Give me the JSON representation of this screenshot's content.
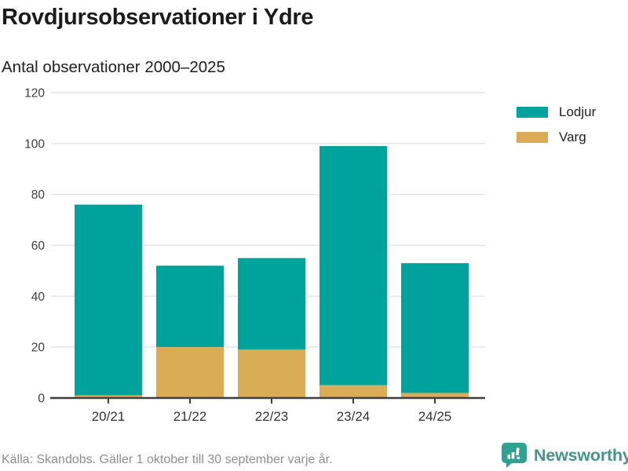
{
  "header": {
    "title": "Rovdjursobservationer i Ydre",
    "subtitle": "Antal observationer 2000–2025"
  },
  "chart_data": {
    "type": "bar",
    "stacked": true,
    "title": "Rovdjursobservationer i Ydre",
    "subtitle": "Antal observationer 2000–2025",
    "xlabel": "",
    "ylabel": "",
    "categories": [
      "20/21",
      "21/22",
      "22/23",
      "23/24",
      "24/25"
    ],
    "series": [
      {
        "name": "Lodjur",
        "color": "#00A39B",
        "values": [
          75,
          32,
          36,
          94,
          51
        ]
      },
      {
        "name": "Varg",
        "color": "#D9AC55",
        "values": [
          1,
          20,
          19,
          5,
          2
        ]
      }
    ],
    "stack_order_bottom_to_top": [
      "Varg",
      "Lodjur"
    ],
    "totals": [
      76,
      52,
      55,
      99,
      53
    ],
    "ylim": [
      0,
      120
    ],
    "yticks": [
      0,
      20,
      40,
      60,
      80,
      100,
      120
    ],
    "grid": true,
    "legend_position": "right"
  },
  "legend": {
    "items": [
      {
        "label": "Lodjur",
        "color": "#00A39B"
      },
      {
        "label": "Varg",
        "color": "#D9AC55"
      }
    ]
  },
  "footer": {
    "source": "Källa: Skandobs. Gäller 1 oktober till 30 september varje år."
  },
  "branding": {
    "name": "Newsworthy",
    "icon": "newsworthy-speech-bubble-chart-icon",
    "icon_color": "#2FA292",
    "text_color": "#45948B"
  },
  "style": {
    "gridline_color": "#E4E4E4",
    "axis_color": "#3F3F3F",
    "tick_label_color": "#3D3D3D",
    "x_label_color": "#333333"
  }
}
